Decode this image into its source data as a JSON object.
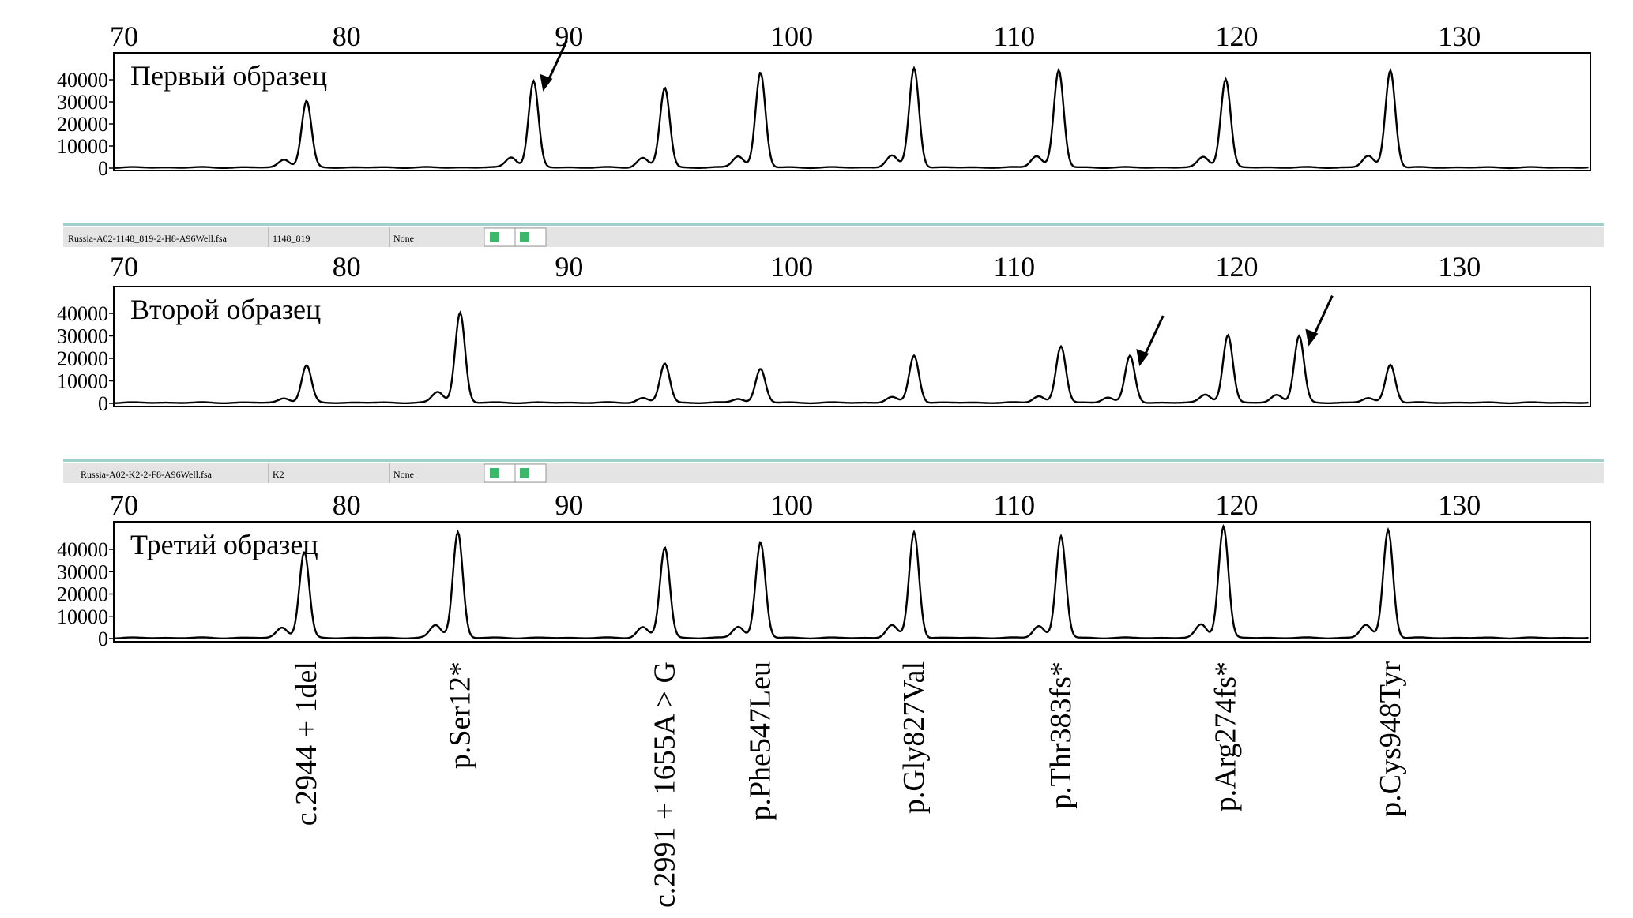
{
  "chart_data": {
    "type": "line",
    "description_axis": "fragment size",
    "x_ticks": [
      70,
      80,
      90,
      100,
      110,
      120,
      130
    ],
    "xlim": [
      70,
      135.5
    ],
    "y_ticks": [
      0,
      10000,
      20000,
      30000,
      40000
    ],
    "ylim": [
      0,
      50000
    ],
    "panels": [
      {
        "title": "Первый образец",
        "peaks": [
          {
            "x": 78.2,
            "y": 30000
          },
          {
            "x": 88.4,
            "y": 39000
          },
          {
            "x": 94.3,
            "y": 36000
          },
          {
            "x": 98.6,
            "y": 43000
          },
          {
            "x": 105.5,
            "y": 45000
          },
          {
            "x": 112.0,
            "y": 44000
          },
          {
            "x": 119.5,
            "y": 40000
          },
          {
            "x": 126.9,
            "y": 44000
          }
        ],
        "arrows_at": [
          88.4
        ]
      },
      {
        "title": "Второй образец",
        "file_bar": {
          "file": "Russia-A02-1148_819-2-H8-A96Well.fsa",
          "sample": "1148_819",
          "panel": "None"
        },
        "peaks": [
          {
            "x": 78.2,
            "y": 16500
          },
          {
            "x": 85.1,
            "y": 40000
          },
          {
            "x": 94.3,
            "y": 17400
          },
          {
            "x": 98.6,
            "y": 15000
          },
          {
            "x": 105.5,
            "y": 21000
          },
          {
            "x": 112.1,
            "y": 25000
          },
          {
            "x": 115.2,
            "y": 20700
          },
          {
            "x": 119.6,
            "y": 30000
          },
          {
            "x": 122.8,
            "y": 29600
          },
          {
            "x": 126.9,
            "y": 17000
          }
        ],
        "arrows_at": [
          115.2,
          122.8
        ]
      },
      {
        "title": "Третий образец",
        "file_bar": {
          "file": "Russia-A02-K2-2-F8-A96Well.fsa",
          "sample": "K2",
          "panel": "None"
        },
        "peaks": [
          {
            "x": 78.1,
            "y": 38600
          },
          {
            "x": 85.0,
            "y": 47500
          },
          {
            "x": 94.3,
            "y": 40500
          },
          {
            "x": 98.6,
            "y": 42800
          },
          {
            "x": 105.5,
            "y": 47500
          },
          {
            "x": 112.1,
            "y": 45600
          },
          {
            "x": 119.4,
            "y": 50000
          },
          {
            "x": 126.8,
            "y": 48500
          }
        ],
        "arrows_at": []
      }
    ],
    "mutations": [
      {
        "x": 78.2,
        "label": "c.2944 + 1del"
      },
      {
        "x": 85.1,
        "label": "p.Ser12*"
      },
      {
        "x": 94.3,
        "label": "c.2991 + 1655A > G"
      },
      {
        "x": 98.6,
        "label": "p.Phe547Leu"
      },
      {
        "x": 105.5,
        "label": "p.Gly827Val"
      },
      {
        "x": 112.1,
        "label": "p.Thr383fs*"
      },
      {
        "x": 119.5,
        "label": "p.Arg274fs*"
      },
      {
        "x": 126.9,
        "label": "p.Cys948Tyr"
      }
    ]
  }
}
